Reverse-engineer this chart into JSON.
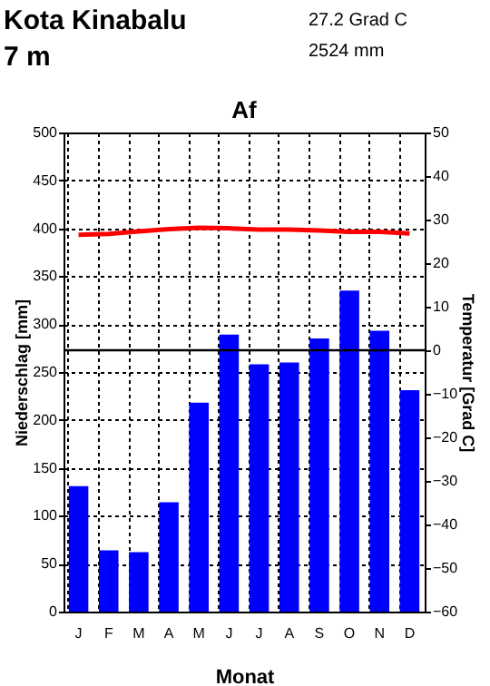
{
  "chart_data": {
    "type": "bar",
    "title": "Af",
    "annotations": [
      "Kota Kinabalu",
      "7 m",
      "27.2 Grad C",
      "2524 mm"
    ],
    "categories": [
      "J",
      "F",
      "M",
      "A",
      "M",
      "J",
      "J",
      "A",
      "S",
      "O",
      "N",
      "D"
    ],
    "series": [
      {
        "color": "#0000ff",
        "values": [
          131,
          64,
          62,
          114,
          218,
          289,
          258,
          260,
          285,
          335,
          293,
          231
        ]
      },
      {
        "type": "line",
        "axis": "y2",
        "color": "#ff0000",
        "values": [
          26.5,
          26.7,
          27.3,
          27.8,
          28.1,
          28.0,
          27.7,
          27.7,
          27.5,
          27.2,
          27.2,
          26.8
        ]
      }
    ],
    "xlabel": "Monat",
    "ylabel": "Niederschlag [mm]",
    "y2label": "Temperatur [Grad C]",
    "ylim": [
      0,
      500
    ],
    "yticks": [
      0,
      50,
      100,
      150,
      200,
      250,
      300,
      350,
      400,
      450,
      500
    ],
    "y2lim": [
      -60,
      50
    ],
    "y2ticks": [
      -60,
      -50,
      -40,
      -30,
      -20,
      -10,
      0,
      10,
      20,
      30,
      40,
      50
    ],
    "ref_lines": [
      {
        "axis": "y2",
        "value": 0,
        "color": "#000000",
        "line_style": "solid"
      }
    ],
    "grid": true
  }
}
